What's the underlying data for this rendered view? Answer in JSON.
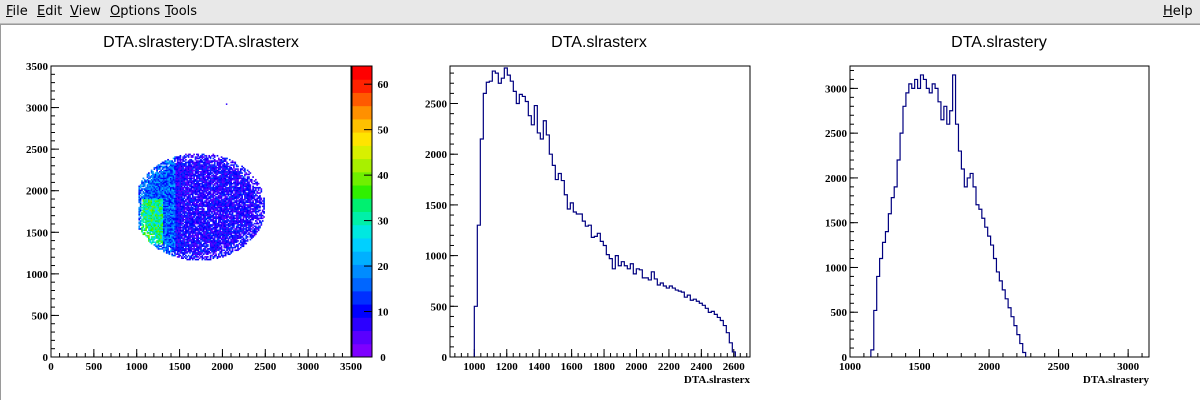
{
  "menu": {
    "items": [
      {
        "label": "File",
        "u": "F",
        "rest": "ile"
      },
      {
        "label": "Edit",
        "u": "E",
        "rest": "dit"
      },
      {
        "label": "View",
        "u": "V",
        "rest": "iew"
      },
      {
        "label": "Options",
        "u": "O",
        "rest": "ptions"
      },
      {
        "label": "Tools",
        "u": "T",
        "rest": "ools"
      }
    ],
    "help": {
      "label": "Help",
      "u": "H",
      "rest": "elp"
    }
  },
  "chart_data": [
    {
      "type": "heatmap",
      "title": "DTA.slrastery:DTA.slrasterx",
      "xlabel": "",
      "ylabel": "",
      "xlim": [
        0,
        3500
      ],
      "ylim": [
        0,
        3500
      ],
      "x_ticks": [
        0,
        500,
        1000,
        1500,
        2000,
        2500,
        3000,
        3500
      ],
      "y_ticks": [
        0,
        500,
        1000,
        1500,
        2000,
        2500,
        3000,
        3500
      ],
      "region": {
        "shape": "ellipse",
        "center_x": 1720,
        "center_y": 1800,
        "x_range": [
          1020,
          2560
        ],
        "y_range": [
          1150,
          2440
        ],
        "dense_region_x": [
          1050,
          1300
        ],
        "dense_region_y": [
          1350,
          1900
        ]
      },
      "colorbar": {
        "range": [
          0,
          64
        ],
        "ticks": [
          0,
          10,
          20,
          30,
          40,
          50,
          60
        ],
        "colors": [
          "#7e00ff",
          "#5a00ff",
          "#2c00ff",
          "#0000ff",
          "#0030ff",
          "#0066ff",
          "#008cff",
          "#00b0ff",
          "#00d0ff",
          "#00e8e0",
          "#00f0a8",
          "#00f070",
          "#30f000",
          "#70f000",
          "#a8f000",
          "#d8f000",
          "#ffe400",
          "#ffc000",
          "#ff9000",
          "#ff5a00",
          "#ff2200",
          "#ff0000"
        ]
      },
      "grid": false,
      "legend": "none"
    },
    {
      "type": "bar",
      "title": "DTA.slrasterx",
      "xlabel": "DTA.slrasterx",
      "ylabel": "",
      "xlim": [
        850,
        2700
      ],
      "ylim": [
        0,
        2870
      ],
      "x_ticks": [
        1000,
        1200,
        1400,
        1600,
        1800,
        2000,
        2200,
        2400,
        2600
      ],
      "y_ticks": [
        0,
        500,
        1000,
        1500,
        2000,
        2500
      ],
      "bin_start": 1000,
      "bin_width": 18.5,
      "values": [
        500,
        1300,
        2150,
        2600,
        2710,
        2720,
        2820,
        2800,
        2700,
        2750,
        2850,
        2780,
        2720,
        2620,
        2500,
        2590,
        2570,
        2520,
        2380,
        2290,
        2480,
        2210,
        2150,
        2330,
        2190,
        2000,
        1890,
        1750,
        1810,
        1740,
        1600,
        1460,
        1520,
        1430,
        1410,
        1410,
        1340,
        1290,
        1300,
        1180,
        1190,
        1220,
        1140,
        1100,
        1010,
        970,
        870,
        1000,
        900,
        940,
        900,
        870,
        920,
        820,
        870,
        860,
        780,
        780,
        760,
        840,
        770,
        710,
        730,
        700,
        680,
        700,
        680,
        660,
        650,
        640,
        590,
        610,
        560,
        570,
        550,
        530,
        510,
        480,
        440,
        450,
        420,
        390,
        360,
        310,
        240,
        140,
        50
      ],
      "color": "#000080",
      "grid": false,
      "legend": "none"
    },
    {
      "type": "bar",
      "title": "DTA.slrastery",
      "xlabel": "DTA.slrastery",
      "ylabel": "",
      "xlim": [
        1000,
        3150
      ],
      "ylim": [
        0,
        3250
      ],
      "x_ticks": [
        1000,
        1500,
        2000,
        2500,
        3000
      ],
      "y_ticks": [
        0,
        500,
        1000,
        1500,
        2000,
        2500,
        3000
      ],
      "bin_start": 1150,
      "bin_width": 21,
      "values": [
        80,
        520,
        900,
        1100,
        1280,
        1400,
        1600,
        1780,
        1900,
        2200,
        2500,
        2800,
        2950,
        3050,
        3000,
        3100,
        3000,
        3150,
        3100,
        3000,
        2950,
        3050,
        3000,
        2850,
        2650,
        2800,
        2600,
        2750,
        3150,
        2600,
        2300,
        2100,
        1900,
        2000,
        2050,
        1900,
        1700,
        1650,
        1550,
        1450,
        1350,
        1250,
        1100,
        950,
        850,
        750,
        650,
        550,
        450,
        350,
        250,
        150,
        50
      ],
      "color": "#000080",
      "grid": false,
      "legend": "none"
    }
  ]
}
